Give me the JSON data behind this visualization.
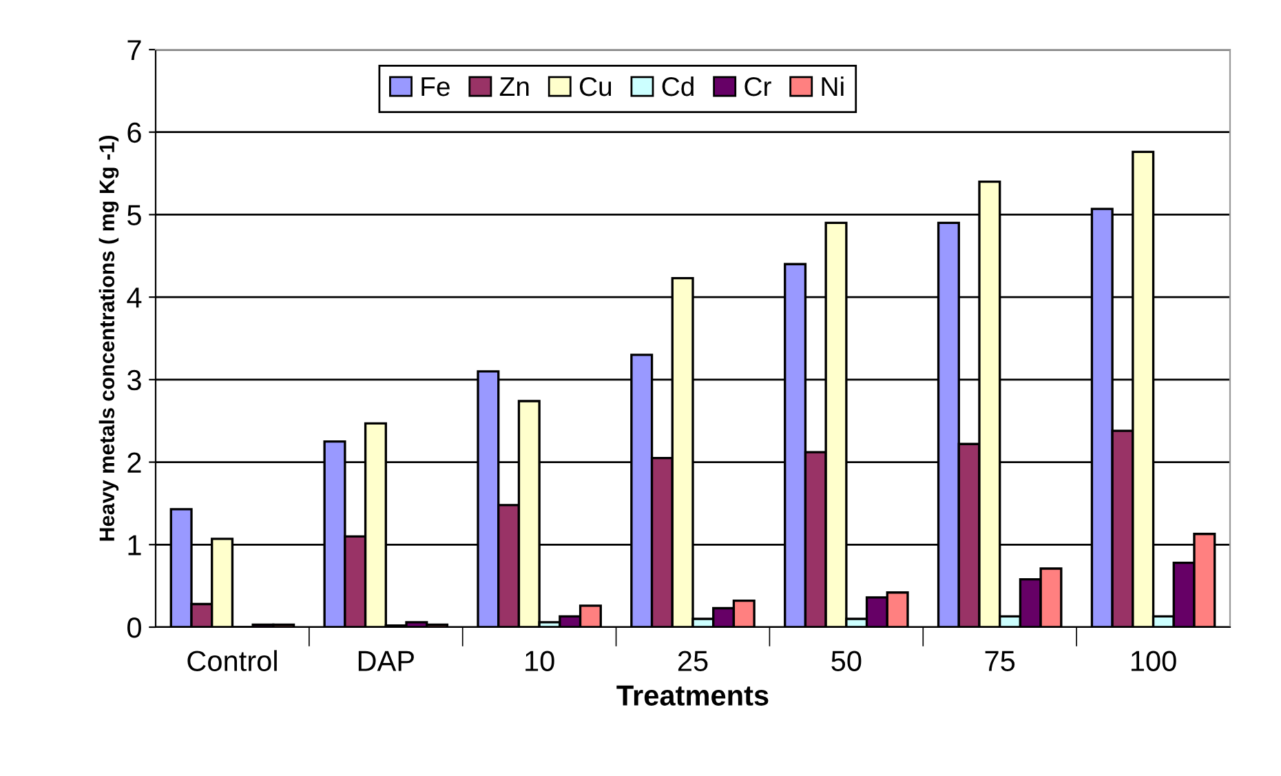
{
  "chart_data": {
    "type": "bar",
    "xlabel": "Treatments",
    "ylabel": "Heavy metals concentrations ( mg Kg -1)",
    "categories": [
      "Control",
      "DAP",
      "10",
      "25",
      "50",
      "75",
      "100"
    ],
    "series": [
      {
        "name": "Fe",
        "color": "#9999ff",
        "values": [
          1.43,
          2.25,
          3.1,
          3.3,
          4.4,
          4.9,
          5.07
        ]
      },
      {
        "name": "Zn",
        "color": "#993366",
        "values": [
          0.28,
          1.1,
          1.48,
          2.05,
          2.12,
          2.22,
          2.38
        ]
      },
      {
        "name": "Cu",
        "color": "#ffffcc",
        "values": [
          1.07,
          2.47,
          2.74,
          4.23,
          4.9,
          5.4,
          5.76
        ]
      },
      {
        "name": "Cd",
        "color": "#ccffff",
        "values": [
          null,
          0.02,
          0.06,
          0.1,
          0.1,
          0.13,
          0.13
        ]
      },
      {
        "name": "Cr",
        "color": "#660066",
        "values": [
          0.03,
          0.06,
          0.13,
          0.23,
          0.36,
          0.58,
          0.78
        ]
      },
      {
        "name": "Ni",
        "color": "#ff8080",
        "values": [
          0.03,
          0.03,
          0.26,
          0.32,
          0.42,
          0.71,
          1.13
        ]
      }
    ],
    "ylim": [
      0,
      7
    ],
    "yticks": [
      0,
      1,
      2,
      3,
      4,
      5,
      6,
      7
    ],
    "grid": "y",
    "legend": "top"
  }
}
